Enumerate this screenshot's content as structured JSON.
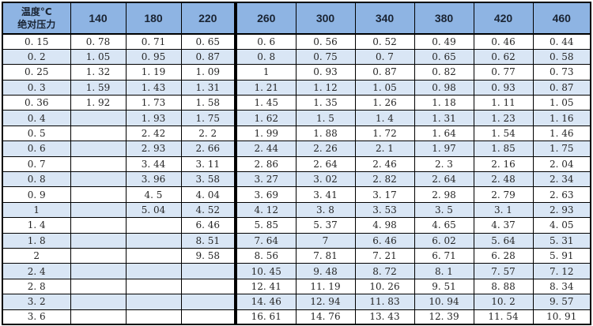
{
  "chart_data": {
    "type": "table",
    "corner_header_line1": "温度°C",
    "corner_header_line2": "绝对压力",
    "columns": [
      "140",
      "180",
      "220",
      "260",
      "300",
      "340",
      "380",
      "420",
      "460"
    ],
    "rows": [
      {
        "pressure": "0.15",
        "values": [
          "0.78",
          "0.71",
          "0.65",
          "0.6",
          "0.56",
          "0.52",
          "0.49",
          "0.46",
          "0.44"
        ]
      },
      {
        "pressure": "0.2",
        "values": [
          "1.05",
          "0.95",
          "0.87",
          "0.8",
          "0.75",
          "0.7",
          "0.65",
          "0.62",
          "0.58"
        ]
      },
      {
        "pressure": "0.25",
        "values": [
          "1.32",
          "1.19",
          "1.09",
          "1",
          "0.93",
          "0.87",
          "0.82",
          "0.77",
          "0.73"
        ]
      },
      {
        "pressure": "0.3",
        "values": [
          "1.59",
          "1.43",
          "1.31",
          "1.21",
          "1.12",
          "1.05",
          "0.98",
          "0.93",
          "0.87"
        ]
      },
      {
        "pressure": "0.36",
        "values": [
          "1.92",
          "1.73",
          "1.58",
          "1.45",
          "1.35",
          "1.26",
          "1.18",
          "1.11",
          "1.05"
        ]
      },
      {
        "pressure": "0.4",
        "values": [
          "",
          "1.93",
          "1.75",
          "1.62",
          "1.5",
          "1.4",
          "1.31",
          "1.23",
          "1.16"
        ]
      },
      {
        "pressure": "0.5",
        "values": [
          "",
          "2.42",
          "2.2",
          "1.99",
          "1.88",
          "1.72",
          "1.64",
          "1.54",
          "1.46"
        ]
      },
      {
        "pressure": "0.6",
        "values": [
          "",
          "2.93",
          "2.66",
          "2.44",
          "2.26",
          "2.1",
          "1.97",
          "1.85",
          "1.75"
        ]
      },
      {
        "pressure": "0.7",
        "values": [
          "",
          "3.44",
          "3.11",
          "2.86",
          "2.64",
          "2.46",
          "2.3",
          "2.16",
          "2.04"
        ]
      },
      {
        "pressure": "0.8",
        "values": [
          "",
          "3.96",
          "3.58",
          "3.27",
          "3.02",
          "2.82",
          "2.64",
          "2.48",
          "2.34"
        ]
      },
      {
        "pressure": "0.9",
        "values": [
          "",
          "4.5",
          "4.04",
          "3.69",
          "3.41",
          "3.17",
          "2.98",
          "2.79",
          "2.63"
        ]
      },
      {
        "pressure": "1",
        "values": [
          "",
          "5.04",
          "4.52",
          "4.12",
          "3.8",
          "3.53",
          "3.5",
          "3.1",
          "2.93"
        ]
      },
      {
        "pressure": "1.4",
        "values": [
          "",
          "",
          "6.46",
          "5.85",
          "5.37",
          "4.98",
          "4.65",
          "4.37",
          "4.05"
        ]
      },
      {
        "pressure": "1.8",
        "values": [
          "",
          "",
          "8.51",
          "7.64",
          "7",
          "6.46",
          "6.02",
          "5.64",
          "5.31"
        ]
      },
      {
        "pressure": "2",
        "values": [
          "",
          "",
          "9.58",
          "8.56",
          "7.81",
          "7.21",
          "6.71",
          "6.28",
          "5.91"
        ]
      },
      {
        "pressure": "2.4",
        "values": [
          "",
          "",
          "",
          "10.45",
          "9.48",
          "8.72",
          "8.1",
          "7.57",
          "7.12"
        ]
      },
      {
        "pressure": "2.8",
        "values": [
          "",
          "",
          "",
          "12.41",
          "11.19",
          "10.26",
          "9.51",
          "8.88",
          "8.34"
        ]
      },
      {
        "pressure": "3.2",
        "values": [
          "",
          "",
          "",
          "14.46",
          "12.94",
          "11.83",
          "10.94",
          "10.2",
          "9.57"
        ]
      },
      {
        "pressure": "3.6",
        "values": [
          "",
          "",
          "",
          "16.61",
          "14.76",
          "13.43",
          "12.39",
          "11.54",
          "10.91"
        ]
      }
    ]
  },
  "colors": {
    "header_bg": "#8EB4E3",
    "stripe_bg": "#D9E6F5",
    "row_bg": "#FFFFFF",
    "border": "#000000",
    "text": "#262626"
  }
}
